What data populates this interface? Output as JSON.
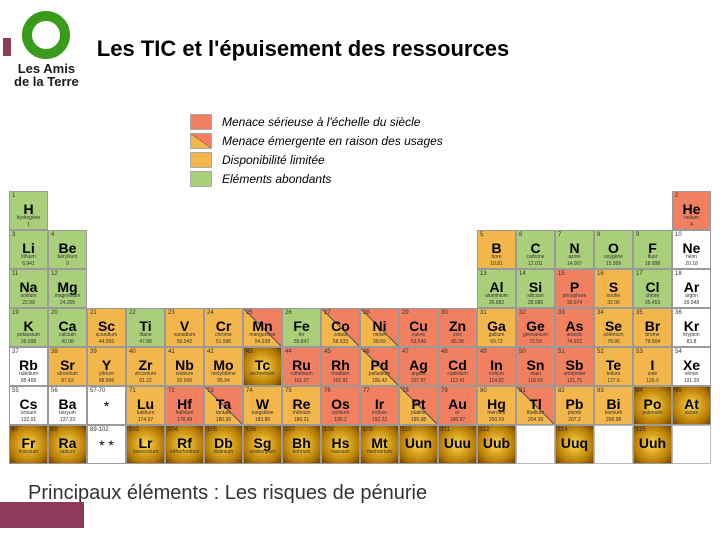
{
  "logo": {
    "ring_color": "#3a9a1a",
    "line1": "Les Amis",
    "line2": "de la Terre"
  },
  "title": "Les TIC et l'épuisement des ressources",
  "caption": "Principaux éléments : Les risques de pénurie",
  "legend": [
    {
      "label": "Menace sérieuse à l'échelle du siècle",
      "color": "#f08060"
    },
    {
      "label": "Menace émergente en raison des usages",
      "split": true,
      "c1": "#f3b64b",
      "c2": "#f08060"
    },
    {
      "label": "Disponibilité limitée",
      "color": "#f3b64b"
    },
    {
      "label": "Eléments abondants",
      "color": "#a9cf7a"
    }
  ],
  "colors": {
    "abundant": "#a9cf7a",
    "limited": "#f3b64b",
    "serious": "#f08060",
    "white": "#ffffff"
  },
  "elements": [
    {
      "r": 1,
      "c": 1,
      "n": 1,
      "s": "H",
      "nm": "hydrogène",
      "m": "1",
      "cat": "abundant"
    },
    {
      "r": 1,
      "c": 18,
      "n": 2,
      "s": "He",
      "nm": "helium",
      "m": "4",
      "cat": "serious"
    },
    {
      "r": 2,
      "c": 1,
      "n": 3,
      "s": "Li",
      "nm": "lithium",
      "m": "6.941",
      "cat": "abundant"
    },
    {
      "r": 2,
      "c": 2,
      "n": 4,
      "s": "Be",
      "nm": "béryllium",
      "m": "9",
      "cat": "abundant"
    },
    {
      "r": 2,
      "c": 13,
      "n": 5,
      "s": "B",
      "nm": "bore",
      "m": "10.81",
      "cat": "limited"
    },
    {
      "r": 2,
      "c": 14,
      "n": 6,
      "s": "C",
      "nm": "carbone",
      "m": "12.011",
      "cat": "abundant"
    },
    {
      "r": 2,
      "c": 15,
      "n": 7,
      "s": "N",
      "nm": "azote",
      "m": "14.007",
      "cat": "abundant"
    },
    {
      "r": 2,
      "c": 16,
      "n": 8,
      "s": "O",
      "nm": "oxygène",
      "m": "15.999",
      "cat": "abundant"
    },
    {
      "r": 2,
      "c": 17,
      "n": 9,
      "s": "F",
      "nm": "fluor",
      "m": "18.998",
      "cat": "abundant"
    },
    {
      "r": 2,
      "c": 18,
      "n": 10,
      "s": "Ne",
      "nm": "néon",
      "m": "20.18",
      "cat": "white"
    },
    {
      "r": 3,
      "c": 1,
      "n": 11,
      "s": "Na",
      "nm": "sodium",
      "m": "22.99",
      "cat": "abundant"
    },
    {
      "r": 3,
      "c": 2,
      "n": 12,
      "s": "Mg",
      "nm": "magnésium",
      "m": "24.305",
      "cat": "abundant"
    },
    {
      "r": 3,
      "c": 13,
      "n": 13,
      "s": "Al",
      "nm": "aluminium",
      "m": "26.982",
      "cat": "abundant"
    },
    {
      "r": 3,
      "c": 14,
      "n": 14,
      "s": "Si",
      "nm": "silicium",
      "m": "28.086",
      "cat": "abundant"
    },
    {
      "r": 3,
      "c": 15,
      "n": 15,
      "s": "P",
      "nm": "phosphore",
      "m": "30.974",
      "cat": "serious"
    },
    {
      "r": 3,
      "c": 16,
      "n": 16,
      "s": "S",
      "nm": "soufre",
      "m": "32.06",
      "cat": "limited"
    },
    {
      "r": 3,
      "c": 17,
      "n": 17,
      "s": "Cl",
      "nm": "chlore",
      "m": "35.453",
      "cat": "abundant"
    },
    {
      "r": 3,
      "c": 18,
      "n": 18,
      "s": "Ar",
      "nm": "argon",
      "m": "39.948",
      "cat": "white"
    },
    {
      "r": 4,
      "c": 1,
      "n": 19,
      "s": "K",
      "nm": "potassium",
      "m": "39.098",
      "cat": "abundant"
    },
    {
      "r": 4,
      "c": 2,
      "n": 20,
      "s": "Ca",
      "nm": "calcium",
      "m": "40.08",
      "cat": "abundant"
    },
    {
      "r": 4,
      "c": 3,
      "n": 21,
      "s": "Sc",
      "nm": "scandium",
      "m": "44.956",
      "cat": "limited"
    },
    {
      "r": 4,
      "c": 4,
      "n": 22,
      "s": "Ti",
      "nm": "titane",
      "m": "47.88",
      "cat": "abundant"
    },
    {
      "r": 4,
      "c": 5,
      "n": 23,
      "s": "V",
      "nm": "vanadium",
      "m": "50.942",
      "cat": "limited"
    },
    {
      "r": 4,
      "c": 6,
      "n": 24,
      "s": "Cr",
      "nm": "chrome",
      "m": "51.996",
      "cat": "limited"
    },
    {
      "r": 4,
      "c": 7,
      "n": 25,
      "s": "Mn",
      "nm": "manganèse",
      "m": "54.938",
      "cat": "split"
    },
    {
      "r": 4,
      "c": 8,
      "n": 26,
      "s": "Fe",
      "nm": "fer",
      "m": "55.847",
      "cat": "abundant"
    },
    {
      "r": 4,
      "c": 9,
      "n": 27,
      "s": "Co",
      "nm": "cobalt",
      "m": "58.933",
      "cat": "split"
    },
    {
      "r": 4,
      "c": 10,
      "n": 28,
      "s": "Ni",
      "nm": "nickel",
      "m": "58.69",
      "cat": "split"
    },
    {
      "r": 4,
      "c": 11,
      "n": 29,
      "s": "Cu",
      "nm": "cuivre",
      "m": "63.546",
      "cat": "serious"
    },
    {
      "r": 4,
      "c": 12,
      "n": 30,
      "s": "Zn",
      "nm": "zinc",
      "m": "65.38",
      "cat": "serious"
    },
    {
      "r": 4,
      "c": 13,
      "n": 31,
      "s": "Ga",
      "nm": "gallium",
      "m": "69.72",
      "cat": "limited"
    },
    {
      "r": 4,
      "c": 14,
      "n": 32,
      "s": "Ge",
      "nm": "germanium",
      "m": "72.59",
      "cat": "serious"
    },
    {
      "r": 4,
      "c": 15,
      "n": 33,
      "s": "As",
      "nm": "arsenic",
      "m": "74.922",
      "cat": "serious"
    },
    {
      "r": 4,
      "c": 16,
      "n": 34,
      "s": "Se",
      "nm": "sélénium",
      "m": "78.96",
      "cat": "limited"
    },
    {
      "r": 4,
      "c": 17,
      "n": 35,
      "s": "Br",
      "nm": "brome",
      "m": "79.904",
      "cat": "limited"
    },
    {
      "r": 4,
      "c": 18,
      "n": 36,
      "s": "Kr",
      "nm": "krypton",
      "m": "83.8",
      "cat": "white"
    },
    {
      "r": 5,
      "c": 1,
      "n": 37,
      "s": "Rb",
      "nm": "rubidium",
      "m": "85.468",
      "cat": "white"
    },
    {
      "r": 5,
      "c": 2,
      "n": 38,
      "s": "Sr",
      "nm": "strontium",
      "m": "87.62",
      "cat": "limited"
    },
    {
      "r": 5,
      "c": 3,
      "n": 39,
      "s": "Y",
      "nm": "yttrium",
      "m": "88.906",
      "cat": "limited"
    },
    {
      "r": 5,
      "c": 4,
      "n": 40,
      "s": "Zr",
      "nm": "zirconium",
      "m": "91.22",
      "cat": "limited"
    },
    {
      "r": 5,
      "c": 5,
      "n": 41,
      "s": "Nb",
      "nm": "niobium",
      "m": "92.906",
      "cat": "limited"
    },
    {
      "r": 5,
      "c": 6,
      "n": 42,
      "s": "Mo",
      "nm": "molybdène",
      "m": "95.94",
      "cat": "limited"
    },
    {
      "r": 5,
      "c": 7,
      "n": 43,
      "s": "Tc",
      "nm": "technétium",
      "m": "",
      "cat": "rad"
    },
    {
      "r": 5,
      "c": 8,
      "n": 44,
      "s": "Ru",
      "nm": "ruthénium",
      "m": "101.07",
      "cat": "serious"
    },
    {
      "r": 5,
      "c": 9,
      "n": 45,
      "s": "Rh",
      "nm": "rhodium",
      "m": "102.91",
      "cat": "serious"
    },
    {
      "r": 5,
      "c": 10,
      "n": 46,
      "s": "Pd",
      "nm": "palladium",
      "m": "106.42",
      "cat": "split"
    },
    {
      "r": 5,
      "c": 11,
      "n": 47,
      "s": "Ag",
      "nm": "argent",
      "m": "107.87",
      "cat": "serious"
    },
    {
      "r": 5,
      "c": 12,
      "n": 48,
      "s": "Cd",
      "nm": "cadmium",
      "m": "112.41",
      "cat": "serious"
    },
    {
      "r": 5,
      "c": 13,
      "n": 49,
      "s": "In",
      "nm": "indium",
      "m": "114.82",
      "cat": "serious"
    },
    {
      "r": 5,
      "c": 14,
      "n": 50,
      "s": "Sn",
      "nm": "étain",
      "m": "118.69",
      "cat": "serious"
    },
    {
      "r": 5,
      "c": 15,
      "n": 51,
      "s": "Sb",
      "nm": "antimoine",
      "m": "121.75",
      "cat": "serious"
    },
    {
      "r": 5,
      "c": 16,
      "n": 52,
      "s": "Te",
      "nm": "tellure",
      "m": "127.6",
      "cat": "limited"
    },
    {
      "r": 5,
      "c": 17,
      "n": 53,
      "s": "I",
      "nm": "iode",
      "m": "126.9",
      "cat": "limited"
    },
    {
      "r": 5,
      "c": 18,
      "n": 54,
      "s": "Xe",
      "nm": "xénon",
      "m": "131.29",
      "cat": "white"
    },
    {
      "r": 6,
      "c": 1,
      "n": 55,
      "s": "Cs",
      "nm": "césium",
      "m": "132.91",
      "cat": "white"
    },
    {
      "r": 6,
      "c": 2,
      "n": 56,
      "s": "Ba",
      "nm": "baryum",
      "m": "137.33",
      "cat": "white"
    },
    {
      "r": 6,
      "c": 3,
      "n": "57-70",
      "s": "*",
      "nm": "",
      "m": "",
      "cat": "white",
      "star": true
    },
    {
      "r": 6,
      "c": 4,
      "n": 71,
      "s": "Lu",
      "nm": "lutétium",
      "m": "174.97",
      "cat": "limited"
    },
    {
      "r": 6,
      "c": 5,
      "n": 72,
      "s": "Hf",
      "nm": "hafnium",
      "m": "178.49",
      "cat": "serious"
    },
    {
      "r": 6,
      "c": 6,
      "n": 73,
      "s": "Ta",
      "nm": "tantale",
      "m": "180.95",
      "cat": "split"
    },
    {
      "r": 6,
      "c": 7,
      "n": 74,
      "s": "W",
      "nm": "tungstène",
      "m": "183.85",
      "cat": "limited"
    },
    {
      "r": 6,
      "c": 8,
      "n": 75,
      "s": "Re",
      "nm": "rhénium",
      "m": "186.21",
      "cat": "limited"
    },
    {
      "r": 6,
      "c": 9,
      "n": 76,
      "s": "Os",
      "nm": "osmium",
      "m": "190.2",
      "cat": "serious"
    },
    {
      "r": 6,
      "c": 10,
      "n": 77,
      "s": "Ir",
      "nm": "iridium",
      "m": "192.22",
      "cat": "serious"
    },
    {
      "r": 6,
      "c": 11,
      "n": 78,
      "s": "Pt",
      "nm": "platine",
      "m": "195.08",
      "cat": "split"
    },
    {
      "r": 6,
      "c": 12,
      "n": 79,
      "s": "Au",
      "nm": "or",
      "m": "196.97",
      "cat": "serious"
    },
    {
      "r": 6,
      "c": 13,
      "n": 80,
      "s": "Hg",
      "nm": "mercure",
      "m": "200.59",
      "cat": "limited"
    },
    {
      "r": 6,
      "c": 14,
      "n": 81,
      "s": "Tl",
      "nm": "thallium",
      "m": "204.38",
      "cat": "split"
    },
    {
      "r": 6,
      "c": 15,
      "n": 82,
      "s": "Pb",
      "nm": "plomb",
      "m": "207.2",
      "cat": "limited"
    },
    {
      "r": 6,
      "c": 16,
      "n": 83,
      "s": "Bi",
      "nm": "bismuth",
      "m": "208.98",
      "cat": "limited"
    },
    {
      "r": 6,
      "c": 17,
      "n": 84,
      "s": "Po",
      "nm": "polonium",
      "m": "",
      "cat": "rad"
    },
    {
      "r": 6,
      "c": 18,
      "n": 85,
      "s": "At",
      "nm": "astate",
      "m": "",
      "cat": "rad"
    },
    {
      "r": 7,
      "c": 1,
      "n": 87,
      "s": "Fr",
      "nm": "francium",
      "m": "",
      "cat": "rad"
    },
    {
      "r": 7,
      "c": 2,
      "n": 88,
      "s": "Ra",
      "nm": "radium",
      "m": "",
      "cat": "rad"
    },
    {
      "r": 7,
      "c": 3,
      "n": "89-102",
      "s": "* *",
      "nm": "",
      "m": "",
      "cat": "white",
      "star": true
    },
    {
      "r": 7,
      "c": 4,
      "n": 103,
      "s": "Lr",
      "nm": "lawrencium",
      "m": "",
      "cat": "rad"
    },
    {
      "r": 7,
      "c": 5,
      "n": 104,
      "s": "Rf",
      "nm": "rutherfordium",
      "m": "",
      "cat": "rad"
    },
    {
      "r": 7,
      "c": 6,
      "n": 105,
      "s": "Db",
      "nm": "dubnium",
      "m": "",
      "cat": "rad"
    },
    {
      "r": 7,
      "c": 7,
      "n": 106,
      "s": "Sg",
      "nm": "seaborgium",
      "m": "",
      "cat": "rad"
    },
    {
      "r": 7,
      "c": 8,
      "n": 107,
      "s": "Bh",
      "nm": "bohrium",
      "m": "",
      "cat": "rad"
    },
    {
      "r": 7,
      "c": 9,
      "n": 108,
      "s": "Hs",
      "nm": "hassium",
      "m": "",
      "cat": "rad"
    },
    {
      "r": 7,
      "c": 10,
      "n": 109,
      "s": "Mt",
      "nm": "meitnérium",
      "m": "",
      "cat": "rad"
    },
    {
      "r": 7,
      "c": 11,
      "n": 110,
      "s": "Uun",
      "nm": "",
      "m": "",
      "cat": "rad"
    },
    {
      "r": 7,
      "c": 12,
      "n": 111,
      "s": "Uuu",
      "nm": "",
      "m": "",
      "cat": "rad"
    },
    {
      "r": 7,
      "c": 13,
      "n": 112,
      "s": "Uub",
      "nm": "",
      "m": "",
      "cat": "rad"
    },
    {
      "r": 7,
      "c": 14,
      "n": "",
      "s": "",
      "nm": "",
      "m": "",
      "cat": "ghost"
    },
    {
      "r": 7,
      "c": 15,
      "n": 114,
      "s": "Uuq",
      "nm": "",
      "m": "",
      "cat": "rad"
    },
    {
      "r": 7,
      "c": 16,
      "n": "",
      "s": "",
      "nm": "",
      "m": "",
      "cat": "ghost"
    },
    {
      "r": 7,
      "c": 17,
      "n": 116,
      "s": "Uuh",
      "nm": "",
      "m": "",
      "cat": "rad"
    },
    {
      "r": 7,
      "c": 18,
      "n": "",
      "s": "",
      "nm": "",
      "m": "",
      "cat": "ghost"
    }
  ]
}
